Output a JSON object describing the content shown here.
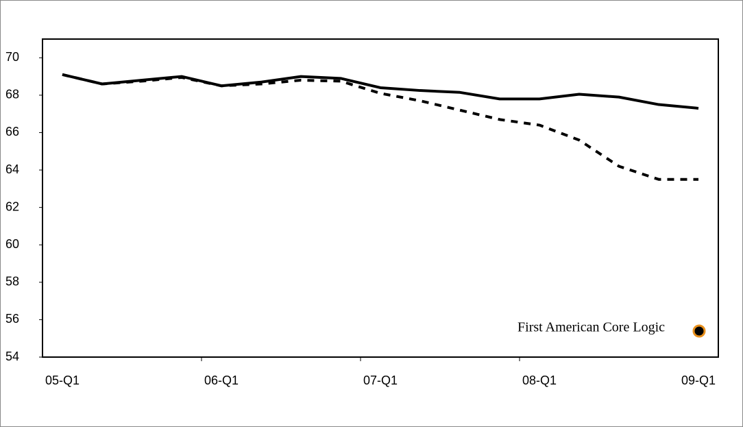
{
  "chart_data": {
    "type": "line",
    "categories": [
      "05-Q1",
      null,
      null,
      null,
      "06-Q1",
      null,
      null,
      null,
      "07-Q1",
      null,
      null,
      null,
      "08-Q1",
      null,
      null,
      null,
      "09-Q1"
    ],
    "series": [
      {
        "color": "#000000",
        "line_style": "solid",
        "values": [
          69.1,
          68.6,
          68.8,
          69.0,
          68.5,
          68.7,
          69.0,
          68.9,
          68.4,
          68.25,
          68.15,
          67.8,
          67.8,
          68.05,
          67.9,
          67.5,
          67.3
        ]
      },
      {
        "color": "#000000",
        "line_style": "dashed",
        "values": [
          69.1,
          68.6,
          68.75,
          68.95,
          68.5,
          68.6,
          68.8,
          68.75,
          68.1,
          67.7,
          67.2,
          66.7,
          66.4,
          65.6,
          64.2,
          63.5,
          63.5
        ]
      }
    ],
    "ylim": [
      54,
      71
    ],
    "yticks": [
      54,
      56,
      58,
      60,
      62,
      64,
      66,
      68,
      70
    ],
    "annotation": "First American Core Logic"
  }
}
